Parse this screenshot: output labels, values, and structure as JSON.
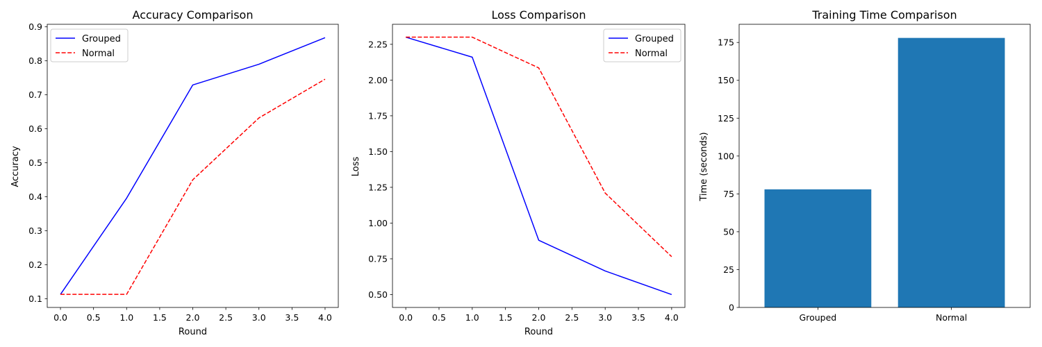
{
  "chart_data": [
    {
      "type": "line",
      "title": "Accuracy Comparison",
      "xlabel": "Round",
      "ylabel": "Accuracy",
      "x": [
        0,
        1,
        2,
        3,
        4
      ],
      "xlim": [
        -0.2,
        4.2
      ],
      "ylim": [
        0.0745,
        0.9075
      ],
      "xticks": [
        "0.0",
        "0.5",
        "1.0",
        "1.5",
        "2.0",
        "2.5",
        "3.0",
        "3.5",
        "4.0"
      ],
      "yticks": [
        "0.1",
        "0.2",
        "0.3",
        "0.4",
        "0.5",
        "0.6",
        "0.7",
        "0.8",
        "0.9"
      ],
      "legend_position": "top-left",
      "series": [
        {
          "name": "Grouped",
          "values": [
            0.113,
            0.396,
            0.729,
            0.79,
            0.868
          ],
          "color": "#0000ff",
          "dash": "solid"
        },
        {
          "name": "Normal",
          "values": [
            0.113,
            0.113,
            0.45,
            0.632,
            0.746
          ],
          "color": "#ff0000",
          "dash": "dashed"
        }
      ]
    },
    {
      "type": "line",
      "title": "Loss Comparison",
      "xlabel": "Round",
      "ylabel": "Loss",
      "x": [
        0,
        1,
        2,
        3,
        4
      ],
      "xlim": [
        -0.2,
        4.2
      ],
      "ylim": [
        0.41,
        2.39
      ],
      "xticks": [
        "0.0",
        "0.5",
        "1.0",
        "1.5",
        "2.0",
        "2.5",
        "3.0",
        "3.5",
        "4.0"
      ],
      "yticks": [
        "0.50",
        "0.75",
        "1.00",
        "1.25",
        "1.50",
        "1.75",
        "2.00",
        "2.25"
      ],
      "legend_position": "top-right",
      "series": [
        {
          "name": "Grouped",
          "values": [
            2.3,
            2.16,
            0.88,
            0.665,
            0.5
          ],
          "color": "#0000ff",
          "dash": "solid"
        },
        {
          "name": "Normal",
          "values": [
            2.3,
            2.3,
            2.085,
            1.21,
            0.765
          ],
          "color": "#ff0000",
          "dash": "dashed"
        }
      ]
    },
    {
      "type": "bar",
      "title": "Training Time Comparison",
      "xlabel": "",
      "ylabel": "Time (seconds)",
      "categories": [
        "Grouped",
        "Normal"
      ],
      "values": [
        78,
        178
      ],
      "ylim": [
        0,
        187
      ],
      "yticks": [
        "0",
        "25",
        "50",
        "75",
        "100",
        "125",
        "150",
        "175"
      ],
      "color": "#1f77b4"
    }
  ]
}
